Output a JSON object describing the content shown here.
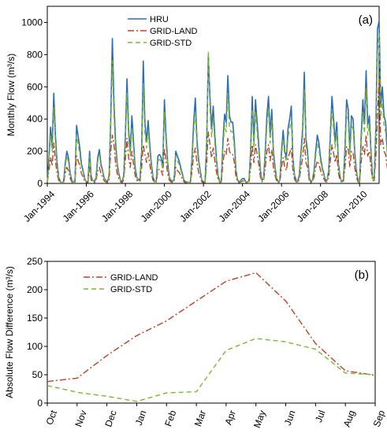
{
  "chart_data": [
    {
      "type": "line",
      "panel_label": "(a)",
      "ylabel": "Monthly Flow (m³/s)",
      "ylim": [
        0,
        1100
      ],
      "yticks": [
        "0",
        "200",
        "400",
        "600",
        "800",
        "1000"
      ],
      "xlim": [
        1994.0,
        2011.0
      ],
      "xtick_labels": [
        "Jan-1994",
        "Jan-1996",
        "Jan-1998",
        "Jan-2000",
        "Jan-2002",
        "Jan-2004",
        "Jan-2006",
        "Jan-2008",
        "Jan-2010"
      ],
      "legend_position": "top-center",
      "series": [
        {
          "name": "HRU",
          "color": "#2e6db4",
          "style": "solid",
          "values": [
            10,
            150,
            350,
            230,
            560,
            300,
            130,
            40,
            10,
            5,
            10,
            120,
            200,
            160,
            70,
            20,
            10,
            10,
            360,
            290,
            220,
            120,
            80,
            30,
            10,
            10,
            200,
            40,
            20,
            10,
            40,
            160,
            210,
            120,
            80,
            30,
            20,
            10,
            50,
            400,
            900,
            500,
            250,
            120,
            60,
            20,
            10,
            50,
            300,
            650,
            330,
            200,
            420,
            260,
            100,
            40,
            20,
            30,
            200,
            760,
            380,
            260,
            390,
            240,
            120,
            40,
            10,
            15,
            170,
            180,
            160,
            100,
            520,
            300,
            130,
            40,
            20,
            10,
            30,
            200,
            170,
            140,
            100,
            60,
            20,
            10,
            10,
            5,
            10,
            160,
            380,
            530,
            270,
            150,
            80,
            20,
            10,
            10,
            260,
            790,
            540,
            340,
            480,
            300,
            150,
            50,
            10,
            20,
            260,
            430,
            380,
            670,
            420,
            380,
            380,
            260,
            80,
            20,
            10,
            20,
            30,
            30,
            10,
            10,
            15,
            200,
            540,
            260,
            520,
            380,
            240,
            80,
            20,
            30,
            200,
            420,
            540,
            300,
            460,
            200,
            100,
            30,
            10,
            20,
            200,
            330,
            200,
            160,
            340,
            400,
            480,
            160,
            50,
            20,
            10,
            60,
            200,
            340,
            690,
            280,
            200,
            40,
            10,
            20,
            80,
            200,
            300,
            250,
            160,
            100,
            60,
            20,
            20,
            80,
            300,
            540,
            400,
            260,
            380,
            120,
            40,
            10,
            20,
            210,
            520,
            460,
            200,
            420,
            400,
            200,
            80,
            20,
            10,
            300,
            520,
            370,
            700,
            360,
            420,
            200,
            30,
            40,
            350,
            960,
            1010,
            480,
            600,
            420,
            380,
            200,
            60,
            30,
            200,
            180,
            380,
            300,
            200,
            200,
            80,
            60,
            10,
            20,
            800,
            720,
            700,
            370,
            620,
            440,
            250,
            120,
            60,
            20,
            270,
            200,
            200,
            380,
            780,
            440,
            280,
            170,
            100,
            60,
            20,
            10,
            30
          ]
        },
        {
          "name": "GRID-LAND",
          "color": "#b5432a",
          "style": "dashdot",
          "values": [
            5,
            80,
            160,
            110,
            250,
            140,
            60,
            20,
            5,
            3,
            5,
            60,
            100,
            80,
            35,
            10,
            5,
            5,
            170,
            140,
            110,
            60,
            40,
            15,
            5,
            5,
            100,
            20,
            10,
            5,
            20,
            80,
            100,
            60,
            40,
            15,
            10,
            5,
            25,
            200,
            300,
            240,
            120,
            60,
            30,
            10,
            5,
            25,
            150,
            280,
            160,
            100,
            200,
            120,
            50,
            20,
            10,
            15,
            100,
            240,
            180,
            130,
            190,
            120,
            60,
            20,
            5,
            8,
            80,
            90,
            80,
            50,
            220,
            140,
            60,
            20,
            10,
            5,
            15,
            100,
            80,
            70,
            50,
            30,
            10,
            5,
            5,
            3,
            5,
            80,
            180,
            220,
            130,
            70,
            40,
            10,
            5,
            5,
            130,
            320,
            240,
            160,
            220,
            140,
            70,
            25,
            5,
            10,
            130,
            200,
            180,
            280,
            200,
            180,
            180,
            130,
            40,
            10,
            5,
            10,
            15,
            15,
            5,
            5,
            8,
            100,
            240,
            130,
            240,
            180,
            120,
            40,
            10,
            15,
            100,
            200,
            240,
            140,
            210,
            100,
            50,
            15,
            5,
            10,
            100,
            160,
            100,
            80,
            160,
            190,
            220,
            80,
            25,
            10,
            5,
            30,
            100,
            160,
            280,
            130,
            100,
            20,
            5,
            10,
            40,
            100,
            140,
            120,
            80,
            50,
            30,
            10,
            10,
            40,
            140,
            240,
            190,
            130,
            180,
            60,
            20,
            5,
            10,
            100,
            230,
            210,
            100,
            200,
            190,
            100,
            40,
            10,
            5,
            140,
            230,
            180,
            300,
            170,
            200,
            100,
            15,
            20,
            170,
            420,
            650,
            240,
            280,
            200,
            180,
            100,
            30,
            15,
            100,
            90,
            180,
            140,
            100,
            100,
            40,
            30,
            5,
            10,
            330,
            300,
            320,
            180,
            280,
            210,
            120,
            60,
            30,
            10,
            130,
            100,
            100,
            180,
            300,
            210,
            140,
            80,
            50,
            30,
            10,
            5,
            15
          ]
        },
        {
          "name": "GRID-STD",
          "color": "#7bb53a",
          "style": "dashed",
          "values": [
            8,
            120,
            300,
            200,
            470,
            250,
            110,
            35,
            8,
            4,
            8,
            100,
            170,
            135,
            60,
            18,
            8,
            8,
            300,
            240,
            180,
            100,
            70,
            25,
            8,
            8,
            170,
            35,
            18,
            8,
            35,
            135,
            175,
            100,
            70,
            25,
            18,
            8,
            40,
            340,
            760,
            420,
            210,
            100,
            50,
            18,
            8,
            40,
            250,
            560,
            280,
            170,
            350,
            220,
            85,
            35,
            18,
            25,
            170,
            620,
            320,
            220,
            330,
            200,
            100,
            35,
            8,
            12,
            140,
            150,
            135,
            85,
            440,
            250,
            110,
            35,
            18,
            8,
            25,
            170,
            140,
            120,
            85,
            50,
            18,
            8,
            8,
            4,
            8,
            135,
            320,
            450,
            230,
            130,
            70,
            18,
            8,
            8,
            220,
            820,
            460,
            290,
            410,
            250,
            130,
            42,
            8,
            18,
            220,
            360,
            320,
            560,
            350,
            320,
            320,
            220,
            70,
            18,
            8,
            18,
            25,
            25,
            8,
            8,
            12,
            170,
            460,
            220,
            440,
            320,
            200,
            70,
            18,
            25,
            170,
            360,
            460,
            250,
            390,
            170,
            85,
            25,
            8,
            18,
            170,
            280,
            170,
            135,
            290,
            340,
            400,
            135,
            42,
            18,
            8,
            50,
            170,
            290,
            580,
            240,
            170,
            35,
            8,
            18,
            70,
            170,
            250,
            210,
            135,
            85,
            50,
            18,
            18,
            70,
            250,
            460,
            340,
            220,
            320,
            100,
            35,
            8,
            18,
            180,
            440,
            390,
            170,
            360,
            340,
            170,
            70,
            18,
            8,
            250,
            440,
            310,
            590,
            300,
            360,
            170,
            25,
            35,
            300,
            820,
            930,
            410,
            500,
            360,
            320,
            170,
            50,
            25,
            170,
            150,
            320,
            250,
            170,
            170,
            70,
            50,
            8,
            18,
            700,
            830,
            600,
            310,
            530,
            370,
            210,
            100,
            50,
            18,
            230,
            170,
            170,
            320,
            690,
            370,
            240,
            140,
            85,
            50,
            18,
            8,
            25
          ]
        }
      ]
    },
    {
      "type": "line",
      "panel_label": "(b)",
      "ylabel": "Absolute Flow Difference (m³/s)",
      "ylim": [
        0,
        250
      ],
      "yticks": [
        "0",
        "50",
        "100",
        "150",
        "200",
        "250"
      ],
      "categories": [
        "Oct",
        "Nov",
        "Dec",
        "Jan",
        "Feb",
        "Mar",
        "Apr",
        "May",
        "Jun",
        "Jul",
        "Aug",
        "Sep"
      ],
      "legend_position": "top-left",
      "series": [
        {
          "name": "GRID-LAND",
          "color": "#b5432a",
          "style": "dashdot",
          "values": [
            38,
            44,
            84,
            119,
            145,
            180,
            215,
            230,
            180,
            105,
            57,
            49
          ]
        },
        {
          "name": "GRID-STD",
          "color": "#7bb53a",
          "style": "dashed",
          "values": [
            31,
            19,
            12,
            3,
            18,
            20,
            93,
            114,
            108,
            95,
            53,
            50
          ]
        }
      ]
    }
  ]
}
